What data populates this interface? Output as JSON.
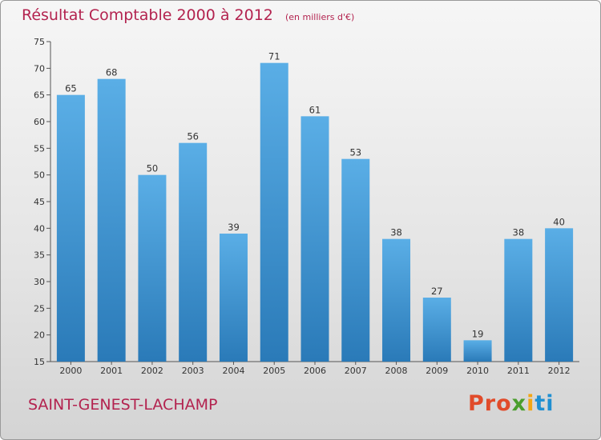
{
  "header": {
    "title": "Résultat Comptable 2000 à 2012",
    "subtitle": "(en milliers d'€)"
  },
  "footer": {
    "commune": "SAINT-GENEST-LACHAMP",
    "brand": [
      "Pro",
      "x",
      "i",
      "ti"
    ]
  },
  "colors": {
    "bar_top": "#5aaee6",
    "bar_bottom": "#2a7ab8",
    "title": "#b3234f"
  },
  "chart_data": {
    "type": "bar",
    "title": "Résultat Comptable 2000 à 2012",
    "subtitle": "(en milliers d'€)",
    "xlabel": "",
    "ylabel": "",
    "categories": [
      "2000",
      "2001",
      "2002",
      "2003",
      "2004",
      "2005",
      "2006",
      "2007",
      "2008",
      "2009",
      "2010",
      "2011",
      "2012"
    ],
    "values": [
      65,
      68,
      50,
      56,
      39,
      71,
      61,
      53,
      38,
      27,
      19,
      38,
      40
    ],
    "ylim": [
      15,
      75
    ],
    "yticks": [
      15,
      20,
      25,
      30,
      35,
      40,
      45,
      50,
      55,
      60,
      65,
      70,
      75
    ],
    "grid": false
  }
}
